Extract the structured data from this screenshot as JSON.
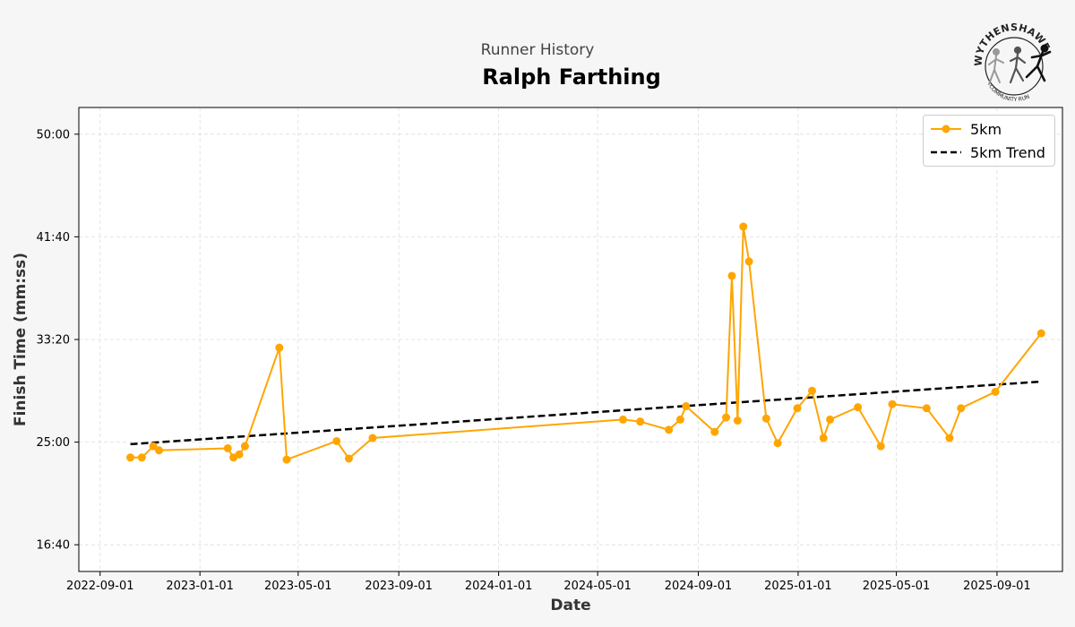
{
  "header": {
    "supertitle": "Runner History",
    "title": "Ralph Farthing"
  },
  "logo": {
    "text_top": "WYTHENSHAWE",
    "text_bottom": "COMMUNITY RUN"
  },
  "colors": {
    "series": "#ffa500",
    "trend": "#000000",
    "background": "#f6f6f6",
    "plot_background": "#ffffff",
    "grid": "#dddddd"
  },
  "chart_data": {
    "type": "line",
    "xlabel": "Date",
    "ylabel": "Finish Time (mm:ss)",
    "x_ticks": [
      "2022-09-01",
      "2023-01-01",
      "2023-05-01",
      "2023-09-01",
      "2024-01-01",
      "2024-05-01",
      "2024-09-01",
      "2025-01-01",
      "2025-05-01",
      "2025-09-01"
    ],
    "y_ticks": [
      "16:40",
      "25:00",
      "33:20",
      "41:40",
      "50:00"
    ],
    "xlim": [
      "2022-08-06",
      "2025-11-20"
    ],
    "ylim": [
      "14:30",
      "52:10"
    ],
    "grid": true,
    "legend_position": "top-right",
    "series": [
      {
        "name": "5km",
        "style": "line-with-markers",
        "x": [
          "2022-10-08",
          "2022-10-22",
          "2022-11-05",
          "2022-11-12",
          "2023-02-04",
          "2023-02-11",
          "2023-02-18",
          "2023-02-25",
          "2023-04-08",
          "2023-04-17",
          "2023-06-17",
          "2023-07-02",
          "2023-07-31",
          "2024-06-01",
          "2024-06-22",
          "2024-07-27",
          "2024-08-10",
          "2024-08-17",
          "2024-09-21",
          "2024-10-05",
          "2024-10-12",
          "2024-10-19",
          "2024-10-26",
          "2024-11-02",
          "2024-11-23",
          "2024-12-07",
          "2024-12-31",
          "2025-01-18",
          "2025-02-01",
          "2025-02-09",
          "2025-03-15",
          "2025-04-12",
          "2025-04-26",
          "2025-06-07",
          "2025-07-05",
          "2025-07-19",
          "2025-08-30",
          "2025-10-25"
        ],
        "y": [
          "23:45",
          "23:45",
          "24:40",
          "24:20",
          "24:30",
          "23:45",
          "24:00",
          "24:40",
          "32:40",
          "23:35",
          "25:05",
          "23:40",
          "25:20",
          "26:50",
          "26:40",
          "26:00",
          "26:50",
          "27:55",
          "25:50",
          "27:00",
          "38:30",
          "26:45",
          "42:30",
          "39:40",
          "26:55",
          "24:55",
          "27:45",
          "29:10",
          "25:20",
          "26:50",
          "27:50",
          "24:40",
          "28:05",
          "27:45",
          "25:20",
          "27:45",
          "29:05",
          "33:50"
        ]
      },
      {
        "name": "5km Trend",
        "style": "dashed",
        "x": [
          "2022-10-08",
          "2025-10-25"
        ],
        "y": [
          "24:50",
          "29:55"
        ]
      }
    ]
  }
}
